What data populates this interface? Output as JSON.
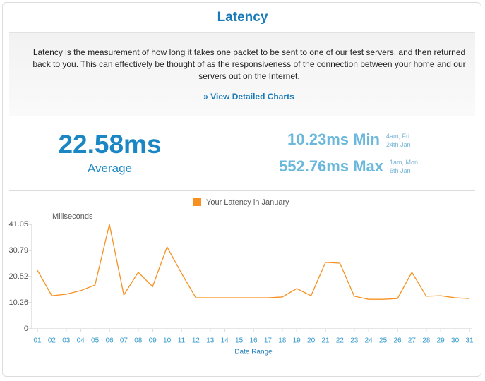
{
  "header": {
    "title": "Latency"
  },
  "description": {
    "text": "Latency is the measurement of how long it takes one packet to be sent to one of our test servers, and then returned back to you. This can effectively be thought of as the responsiveness of the connection between your home and our servers out on the Internet.",
    "link": "» View Detailed Charts"
  },
  "stats": {
    "average": {
      "value": "22.58ms",
      "label": "Average"
    },
    "min": {
      "value": "10.23ms Min",
      "time": "4am, Fri",
      "date": "24th Jan"
    },
    "max": {
      "value": "552.76ms Max",
      "time": "1am, Mon",
      "date": "6th Jan"
    }
  },
  "chart_data": {
    "type": "line",
    "y_label": "Miliseconds",
    "x_label": "Date Range",
    "categories": [
      "01",
      "02",
      "03",
      "04",
      "05",
      "06",
      "07",
      "08",
      "09",
      "10",
      "11",
      "12",
      "13",
      "14",
      "15",
      "16",
      "17",
      "18",
      "19",
      "20",
      "21",
      "22",
      "23",
      "24",
      "25",
      "26",
      "27",
      "28",
      "29",
      "30",
      "31"
    ],
    "series": [
      {
        "name": "Your Latency in January",
        "color": "#f7901e",
        "values": [
          23.0,
          13.0,
          13.6,
          15.0,
          17.2,
          41.05,
          13.3,
          22.2,
          16.6,
          32.2,
          21.9,
          12.2,
          12.2,
          12.2,
          12.2,
          12.2,
          12.2,
          12.5,
          15.8,
          13.0,
          26.1,
          25.8,
          12.8,
          11.6,
          11.6,
          11.9,
          22.2,
          12.8,
          13.0,
          12.2,
          11.9
        ]
      }
    ],
    "ylim": [
      0,
      41.05
    ],
    "yticks": [
      0,
      10.26,
      20.52,
      30.79,
      41.05
    ],
    "grid": false
  }
}
